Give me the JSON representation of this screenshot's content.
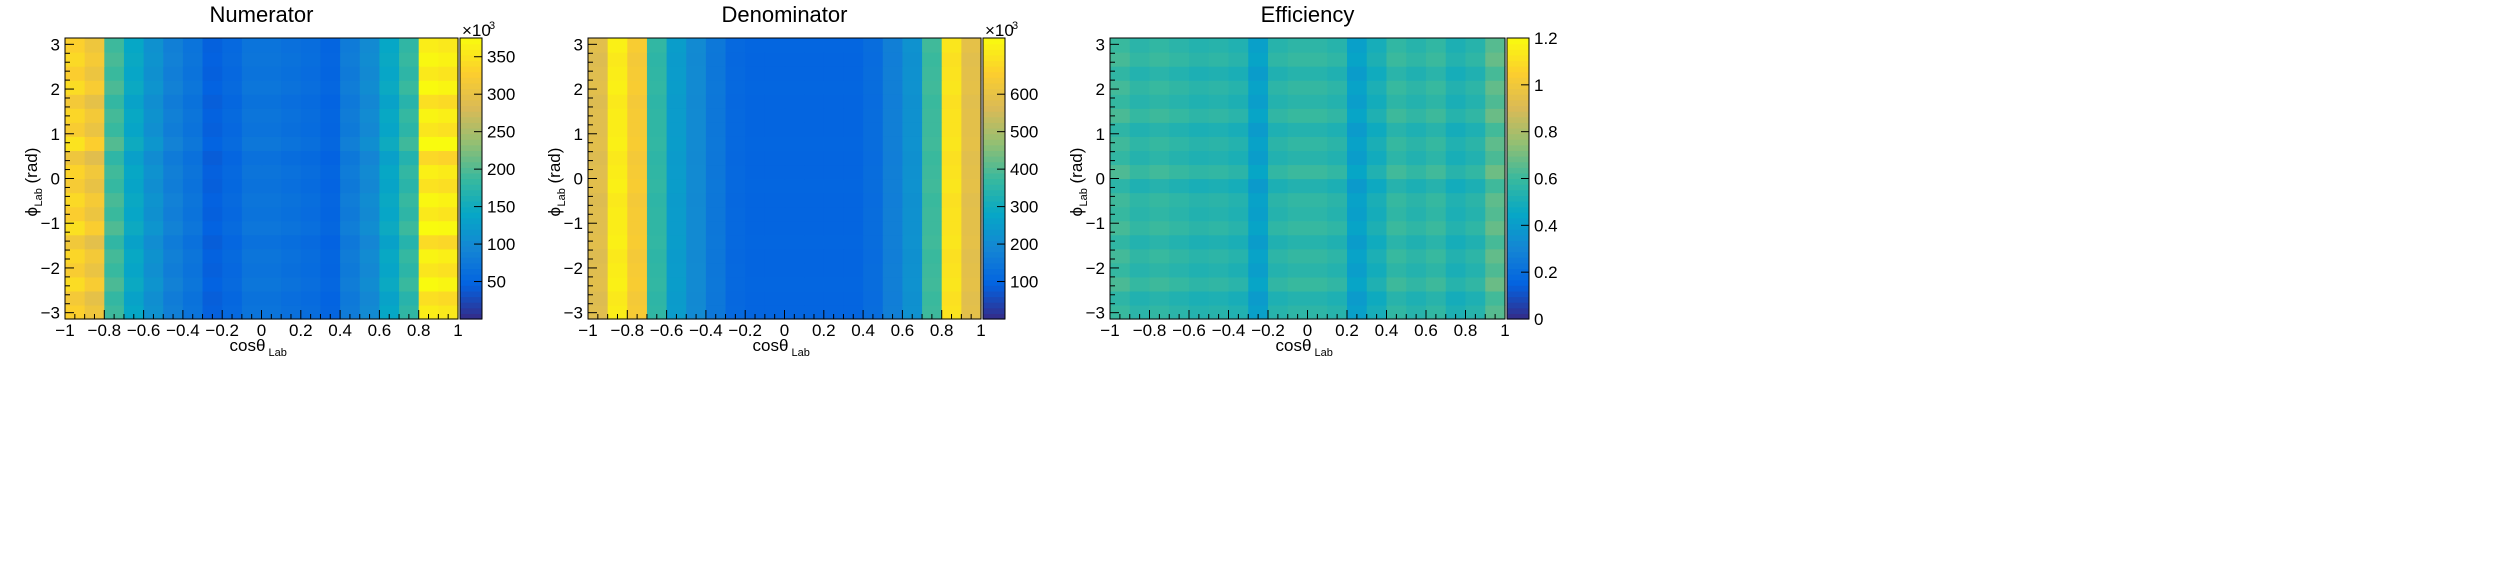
{
  "colors": {
    "palette": [
      "#352a87",
      "#0363e1",
      "#1485d4",
      "#06a7c6",
      "#38b99e",
      "#92bf73",
      "#d9ba56",
      "#fcce2e",
      "#f9fb0e"
    ],
    "frame": "#000000"
  },
  "chart_data": [
    {
      "type": "heatmap",
      "title": "Numerator",
      "xlabel": "cosθ",
      "xlabel_sub": "Lab",
      "ylabel": "ϕ",
      "ylabel_sub": "Lab",
      "ylabel_unit": "(rad)",
      "xlim": [
        -1,
        1
      ],
      "ylim": [
        -3.1416,
        3.1416
      ],
      "x_ticks": [
        -1,
        -0.8,
        -0.6,
        -0.4,
        -0.2,
        0,
        0.2,
        0.4,
        0.6,
        0.8,
        1
      ],
      "y_ticks": [
        -3,
        -2,
        -1,
        0,
        1,
        2,
        3
      ],
      "nx": 20,
      "ny": 20,
      "zlim": [
        0,
        375
      ],
      "z_ticks": [
        50,
        100,
        150,
        200,
        250,
        300,
        350
      ],
      "z_multiplier": "×10",
      "z_multiplier_exp": "3",
      "column_profile": [
        330,
        310,
        190,
        140,
        110,
        85,
        70,
        45,
        55,
        70,
        70,
        65,
        60,
        50,
        80,
        100,
        140,
        180,
        360,
        355
      ],
      "row_factors": [
        1.0,
        0.96,
        1.04,
        0.98,
        1.02,
        0.95,
        1.05,
        0.99,
        1.03,
        0.97,
        1.01,
        0.94,
        1.06,
        0.98,
        1.02,
        0.96,
        1.04,
        0.99,
        1.03,
        1.0
      ]
    },
    {
      "type": "heatmap",
      "title": "Denominator",
      "xlabel": "cosθ",
      "xlabel_sub": "Lab",
      "ylabel": "ϕ",
      "ylabel_sub": "Lab",
      "ylabel_unit": "(rad)",
      "xlim": [
        -1,
        1
      ],
      "ylim": [
        -3.1416,
        3.1416
      ],
      "x_ticks": [
        -1,
        -0.8,
        -0.6,
        -0.4,
        -0.2,
        0,
        0.2,
        0.4,
        0.6,
        0.8,
        1
      ],
      "y_ticks": [
        -3,
        -2,
        -1,
        0,
        1,
        2,
        3
      ],
      "nx": 20,
      "ny": 20,
      "zlim": [
        0,
        750
      ],
      "z_ticks": [
        100,
        200,
        300,
        400,
        500,
        600
      ],
      "z_multiplier": "×10",
      "z_multiplier_exp": "3",
      "column_profile": [
        580,
        720,
        640,
        360,
        250,
        200,
        150,
        110,
        100,
        100,
        100,
        100,
        100,
        100,
        120,
        170,
        220,
        380,
        700,
        590
      ],
      "row_factors": [
        1.0,
        0.99,
        1.01,
        1.0,
        0.99,
        1.01,
        1.0,
        1.0,
        0.99,
        1.01,
        1.0,
        0.99,
        1.01,
        1.0,
        1.0,
        0.99,
        1.01,
        1.0,
        0.99,
        1.01
      ]
    },
    {
      "type": "heatmap",
      "title": "Efficiency",
      "xlabel": "cosθ",
      "xlabel_sub": "Lab",
      "ylabel": "ϕ",
      "ylabel_sub": "Lab",
      "ylabel_unit": "(rad)",
      "xlim": [
        -1,
        1
      ],
      "ylim": [
        -3.1416,
        3.1416
      ],
      "x_ticks": [
        -1,
        -0.8,
        -0.6,
        -0.4,
        -0.2,
        0,
        0.2,
        0.4,
        0.6,
        0.8,
        1
      ],
      "y_ticks": [
        -3,
        -2,
        -1,
        0,
        1,
        2,
        3
      ],
      "nx": 20,
      "ny": 20,
      "zlim": [
        0,
        1.2
      ],
      "z_ticks": [
        0,
        0.2,
        0.4,
        0.6,
        0.8,
        1,
        1.2
      ],
      "z_multiplier": "",
      "z_multiplier_exp": "",
      "column_profile": [
        0.6,
        0.56,
        0.58,
        0.56,
        0.54,
        0.55,
        0.53,
        0.42,
        0.55,
        0.57,
        0.57,
        0.55,
        0.42,
        0.5,
        0.58,
        0.55,
        0.58,
        0.52,
        0.55,
        0.65
      ],
      "row_factors": [
        1.0,
        0.95,
        1.05,
        0.98,
        1.03,
        0.96,
        1.04,
        0.99,
        1.02,
        0.94,
        1.06,
        0.97,
        1.02,
        0.95,
        1.05,
        0.98,
        1.03,
        0.96,
        1.04,
        1.0
      ]
    }
  ]
}
